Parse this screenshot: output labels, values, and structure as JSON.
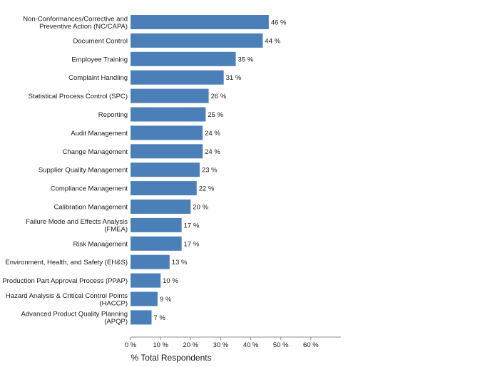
{
  "chart_data": {
    "type": "bar",
    "orientation": "horizontal",
    "categories": [
      [
        "Non-Conformances/Corrective and",
        "Preventive Action (NC/CAPA)"
      ],
      [
        "Document Control"
      ],
      [
        "Employee Training"
      ],
      [
        "Complaint Handling"
      ],
      [
        "Statistical Process Control (SPC)"
      ],
      [
        "Reporting"
      ],
      [
        "Audit Management"
      ],
      [
        "Change Management"
      ],
      [
        "Supplier Quality Management"
      ],
      [
        "Compliance Management"
      ],
      [
        "Calibration Management"
      ],
      [
        "Failure Mode and Effects Analysis",
        "(FMEA)"
      ],
      [
        "Risk Management"
      ],
      [
        "Environment, Health, and Safety (EH&S)"
      ],
      [
        "Production Part Approval Process (PPAP)"
      ],
      [
        "Hazard Analysis & Critical Control Points",
        "(HACCP)"
      ],
      [
        "Advanced Product Quality Planning",
        "(APQP)"
      ]
    ],
    "values": [
      46,
      44,
      35,
      31,
      26,
      25,
      24,
      24,
      23,
      22,
      20,
      17,
      17,
      13,
      10,
      9,
      7
    ],
    "value_labels": [
      "46 %",
      "44 %",
      "35 %",
      "31 %",
      "26 %",
      "25 %",
      "24 %",
      "24 %",
      "23 %",
      "22 %",
      "20 %",
      "17 %",
      "17 %",
      "13 %",
      "10 %",
      "9 %",
      "7 %"
    ],
    "xlabel": "% Total Respondents",
    "ylabel": "",
    "xlim": [
      0,
      70
    ],
    "xticks": [
      0,
      10,
      20,
      30,
      40,
      50,
      60
    ],
    "xtick_labels": [
      "0 %",
      "10 %",
      "20 %",
      "30 %",
      "40 %",
      "50 %",
      "60 %"
    ],
    "grid": false,
    "bar_color": "#4a7fb8",
    "axis_color": "#8c8c8c"
  }
}
